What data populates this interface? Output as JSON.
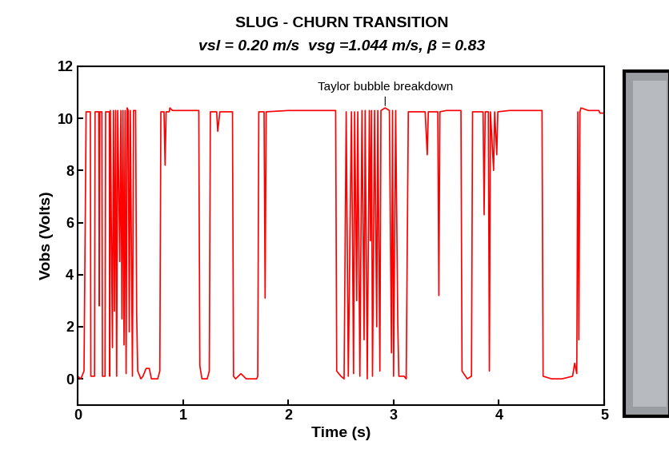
{
  "chart_data": {
    "type": "line",
    "title": "SLUG - CHURN TRANSITION",
    "subtitle": "vsl = 0.20 m/s  vsg =1.044 m/s, β = 0.83",
    "x_label": "Time (s)",
    "y_label": "Vobs (Volts)",
    "xlim": [
      0,
      5
    ],
    "xticks": [
      0,
      1,
      2,
      3,
      4,
      5
    ],
    "ylim": [
      -1,
      12
    ],
    "yticks": [
      0,
      2,
      4,
      6,
      8,
      10,
      12
    ],
    "grid": false,
    "annotations": [
      {
        "text": "Taylor bubble breakdown",
        "x": 2.92,
        "y": 10.4
      }
    ],
    "series": [
      {
        "name": "Vobs",
        "color": "#ff0000",
        "line_style": "solid",
        "x": [
          0.0,
          0.03,
          0.06,
          0.08,
          0.12,
          0.125,
          0.16,
          0.165,
          0.2,
          0.205,
          0.21,
          0.23,
          0.235,
          0.26,
          0.265,
          0.3,
          0.305,
          0.31,
          0.33,
          0.34,
          0.35,
          0.36,
          0.37,
          0.38,
          0.4,
          0.41,
          0.42,
          0.43,
          0.44,
          0.45,
          0.46,
          0.47,
          0.48,
          0.49,
          0.5,
          0.52,
          0.53,
          0.55,
          0.56,
          0.57,
          0.6,
          0.62,
          0.65,
          0.68,
          0.7,
          0.76,
          0.78,
          0.79,
          0.82,
          0.83,
          0.84,
          0.87,
          0.875,
          0.9,
          0.95,
          1.0,
          1.05,
          1.1,
          1.15,
          1.16,
          1.18,
          1.23,
          1.25,
          1.26,
          1.32,
          1.33,
          1.35,
          1.47,
          1.48,
          1.5,
          1.55,
          1.6,
          1.7,
          1.71,
          1.72,
          1.77,
          1.78,
          1.79,
          2.0,
          2.2,
          2.4,
          2.45,
          2.46,
          2.5,
          2.53,
          2.55,
          2.57,
          2.6,
          2.62,
          2.63,
          2.65,
          2.66,
          2.68,
          2.7,
          2.72,
          2.73,
          2.75,
          2.77,
          2.78,
          2.79,
          2.8,
          2.82,
          2.84,
          2.85,
          2.87,
          2.88,
          2.92,
          2.96,
          2.98,
          2.99,
          3.0,
          3.02,
          3.04,
          3.05,
          3.1,
          3.12,
          3.14,
          3.3,
          3.32,
          3.33,
          3.42,
          3.43,
          3.44,
          3.5,
          3.6,
          3.64,
          3.65,
          3.7,
          3.74,
          3.75,
          3.85,
          3.86,
          3.87,
          3.9,
          3.91,
          3.92,
          3.95,
          3.96,
          3.98,
          3.99,
          4.1,
          4.2,
          4.3,
          4.41,
          4.42,
          4.5,
          4.6,
          4.7,
          4.72,
          4.74,
          4.75,
          4.76,
          4.77,
          4.78,
          4.85,
          4.9,
          4.95,
          4.96,
          5.0
        ],
        "values": [
          0.1,
          0.0,
          0.3,
          10.25,
          10.25,
          0.1,
          0.1,
          10.25,
          10.25,
          2.8,
          10.25,
          10.25,
          0.1,
          0.1,
          10.25,
          10.25,
          0.1,
          10.3,
          1.2,
          10.3,
          2.6,
          10.3,
          0.1,
          10.3,
          4.5,
          10.3,
          2.3,
          10.3,
          1.3,
          10.3,
          0.2,
          10.4,
          10.3,
          1.8,
          10.3,
          0.1,
          10.3,
          10.3,
          2.5,
          0.3,
          0.0,
          0.1,
          0.4,
          0.4,
          0.0,
          0.0,
          0.3,
          10.25,
          10.25,
          8.2,
          10.25,
          10.25,
          10.4,
          10.3,
          10.3,
          10.3,
          10.3,
          10.3,
          10.3,
          0.5,
          0.0,
          0.0,
          0.3,
          10.25,
          10.25,
          9.5,
          10.25,
          10.25,
          0.1,
          0.0,
          0.2,
          0.0,
          0.0,
          0.1,
          10.25,
          10.25,
          3.1,
          10.25,
          10.3,
          10.3,
          10.3,
          10.3,
          0.3,
          0.1,
          0.0,
          10.25,
          0.1,
          10.25,
          0.2,
          10.25,
          3.0,
          10.25,
          0.1,
          10.3,
          1.5,
          10.3,
          0.0,
          10.3,
          5.3,
          10.3,
          0.1,
          10.3,
          2.0,
          10.3,
          0.3,
          10.3,
          10.4,
          10.3,
          1.0,
          10.3,
          0.1,
          10.3,
          2.1,
          0.1,
          0.1,
          0.0,
          10.25,
          10.25,
          8.6,
          10.25,
          10.25,
          3.2,
          10.25,
          10.3,
          10.3,
          10.3,
          0.3,
          0.0,
          0.1,
          10.25,
          10.25,
          6.3,
          10.25,
          10.25,
          0.3,
          10.25,
          8.0,
          10.25,
          8.6,
          10.25,
          10.3,
          10.3,
          10.3,
          10.3,
          0.1,
          0.0,
          0.0,
          0.1,
          0.6,
          0.2,
          10.25,
          1.5,
          10.25,
          10.4,
          10.3,
          10.3,
          10.3,
          10.2,
          10.2
        ]
      }
    ]
  }
}
